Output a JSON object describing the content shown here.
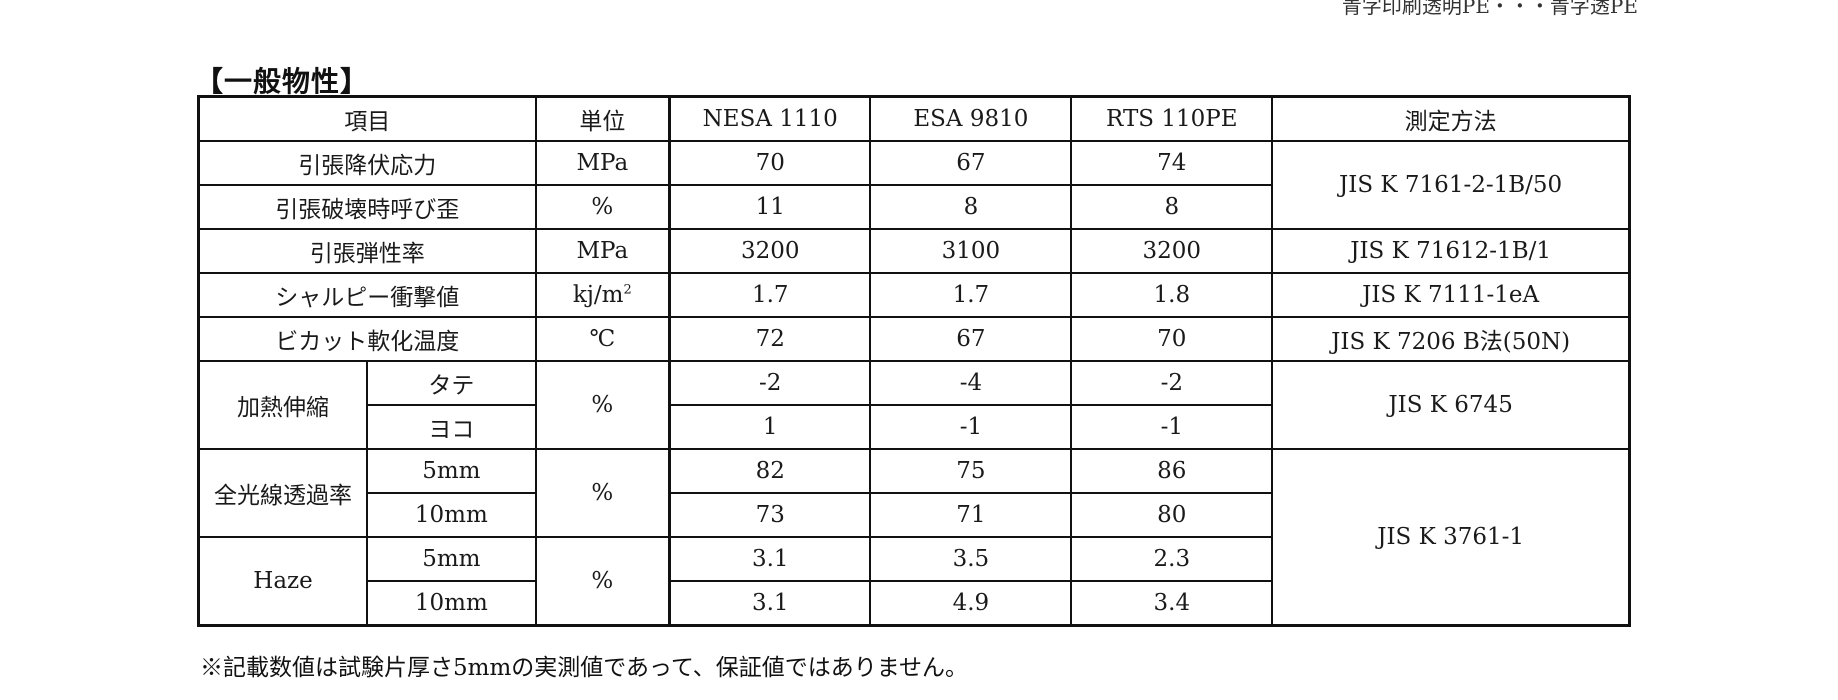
{
  "page_header": "青字印刷透明PE・・・青字透PE",
  "section_title": "【一般物性】",
  "columns": {
    "item": "項目",
    "unit": "単位",
    "nesa": "NESA 1110",
    "esa": "ESA 9810",
    "rts": "RTS 110PE",
    "method": "測定方法"
  },
  "rows": {
    "tensile_yield": {
      "label": "引張降伏応力",
      "unit": "MPa",
      "nesa": "70",
      "esa": "67",
      "rts": "74"
    },
    "tensile_break": {
      "label": "引張破壊時呼び歪",
      "unit": "%",
      "nesa": "11",
      "esa": "8",
      "rts": "8"
    },
    "tensile_method": "JIS K 7161-2-1B/50",
    "elastic": {
      "label": "引張弾性率",
      "unit": "MPa",
      "nesa": "3200",
      "esa": "3100",
      "rts": "3200",
      "method": "JIS K 71612-1B/1"
    },
    "charpy": {
      "label": "シャルピー衝撃値",
      "unit_base": "kj/m",
      "unit_sup": "2",
      "nesa": "1.7",
      "esa": "1.7",
      "rts": "1.8",
      "method": "JIS K 7111-1eA"
    },
    "vicat": {
      "label": "ビカット軟化温度",
      "unit": "℃",
      "nesa": "72",
      "esa": "67",
      "rts": "70",
      "method": "JIS K 7206 B法(50N)"
    },
    "heat_shrink": {
      "label": "加熱伸縮",
      "unit": "%",
      "method": "JIS K 6745",
      "sub": [
        {
          "label": "タテ",
          "nesa": "-2",
          "esa": "-4",
          "rts": "-2"
        },
        {
          "label": "ヨコ",
          "nesa": "1",
          "esa": "-1",
          "rts": "-1"
        }
      ]
    },
    "transmittance": {
      "label": "全光線透過率",
      "unit": "%",
      "sub": [
        {
          "label": "5mm",
          "nesa": "82",
          "esa": "75",
          "rts": "86"
        },
        {
          "label": "10mm",
          "nesa": "73",
          "esa": "71",
          "rts": "80"
        }
      ]
    },
    "haze": {
      "label": "Haze",
      "unit": "%",
      "sub": [
        {
          "label": "5mm",
          "nesa": "3.1",
          "esa": "3.5",
          "rts": "2.3"
        },
        {
          "label": "10mm",
          "nesa": "3.1",
          "esa": "4.9",
          "rts": "3.4"
        }
      ]
    },
    "optical_method": "JIS K 3761-1"
  },
  "footnote": "※記載数値は試験片厚さ5mmの実測値であって、保証値ではありません。"
}
